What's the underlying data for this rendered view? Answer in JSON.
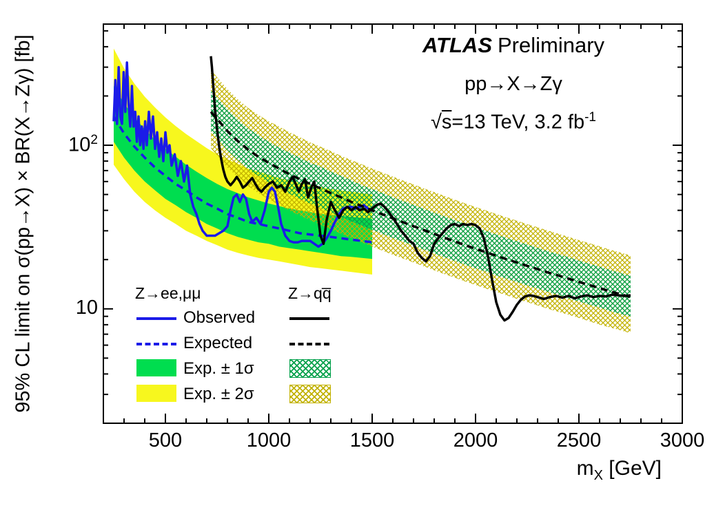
{
  "colors": {
    "blue": "#1b1be8",
    "black": "#000000",
    "green": "#00dd4f",
    "yellow": "#f7f71e",
    "hatch_green": "#00a04a",
    "hatch_yellow": "#c2b200"
  },
  "annotations": {
    "atlas": "ATLAS",
    "preliminary": "Preliminary",
    "process": "pp→X→Zγ",
    "lumi_sqrt": "√",
    "lumi_s": "s",
    "lumi_rest": "=13 TeV, 3.2 fb",
    "lumi_sup": "-1"
  },
  "axes": {
    "x_label_main": "m",
    "x_label_sub": "X",
    "x_label_rest": " [GeV]",
    "y_label": "95% CL limit on σ(pp→X) × BR(X→Zγ)  [fb]",
    "x_ticks": [
      500,
      1000,
      1500,
      2000,
      2500,
      3000
    ],
    "y_ticks": [
      {
        "base": "10",
        "exp": "2",
        "value": 100
      },
      {
        "base": "10",
        "exp": "",
        "value": 10
      }
    ]
  },
  "legend": {
    "col1_header": "Z→ee,μμ",
    "col2_header": "Z→qq̅",
    "rows": [
      {
        "label": "Observed"
      },
      {
        "label": "Expected"
      },
      {
        "label": "Exp. ± 1σ"
      },
      {
        "label": "Exp. ± 2σ"
      }
    ]
  },
  "chart_data": {
    "type": "line",
    "title": "ATLAS Preliminary 95% CL upper limits, pp→X→Zγ, √s=13 TeV, 3.2 fb⁻¹",
    "xlabel": "m_X [GeV]",
    "ylabel": "95% CL limit on σ(pp→X) × BR(X→Zγ) [fb]",
    "xlim": [
      200,
      3000
    ],
    "ylim": [
      2,
      550
    ],
    "yscale": "log",
    "xscale": "linear",
    "grid": false,
    "legend_position": "bottom-left",
    "channels": [
      {
        "key": "ll",
        "label": "Z→ee,μμ",
        "x": [
          250,
          300,
          350,
          400,
          450,
          500,
          550,
          600,
          650,
          700,
          750,
          800,
          850,
          900,
          950,
          1000,
          1050,
          1100,
          1150,
          1200,
          1250,
          1300,
          1350,
          1400,
          1450,
          1500
        ],
        "expected": [
          150,
          118,
          98,
          84,
          73,
          65,
          58,
          53,
          48,
          44,
          41,
          38,
          36,
          34,
          33,
          32,
          31,
          30,
          29,
          28.5,
          28,
          27.5,
          27,
          26.5,
          26,
          25.5
        ],
        "band1_up": [
          230,
          180,
          148,
          125,
          108,
          95,
          85,
          76,
          69,
          63,
          58,
          54,
          51,
          48,
          46,
          44,
          42.5,
          41,
          40,
          39,
          38,
          37.5,
          37,
          36.5,
          36,
          35.5
        ],
        "band1_lo": [
          105,
          84,
          70,
          60,
          53,
          47,
          43,
          39,
          36,
          33,
          31,
          29,
          27.5,
          26.5,
          25.5,
          25,
          24,
          23.5,
          23,
          22.5,
          22,
          21.5,
          21,
          20.8,
          20.5,
          20.2
        ],
        "band2_up": [
          390,
          295,
          238,
          198,
          170,
          148,
          131,
          117,
          106,
          96,
          88,
          82,
          77,
          72,
          69,
          66,
          63,
          61,
          59,
          57,
          55.5,
          54,
          53,
          52,
          51,
          50
        ],
        "band2_lo": [
          76,
          62,
          52,
          45,
          40,
          36,
          33,
          30,
          28,
          26,
          24.5,
          23,
          22,
          21.2,
          20.5,
          20,
          19.5,
          19,
          18.5,
          18,
          17.7,
          17.4,
          17.1,
          16.8,
          16.5,
          16.2
        ],
        "obs_x": [
          250,
          258,
          266,
          274,
          282,
          290,
          298,
          306,
          314,
          322,
          330,
          338,
          346,
          354,
          362,
          370,
          378,
          386,
          394,
          402,
          410,
          420,
          430,
          440,
          450,
          460,
          470,
          480,
          490,
          500,
          510,
          520,
          530,
          545,
          560,
          575,
          590,
          605,
          620,
          635,
          650,
          665,
          680,
          700,
          720,
          740,
          760,
          780,
          800,
          815,
          830,
          845,
          860,
          875,
          890,
          905,
          920,
          940,
          960,
          980,
          1000,
          1015,
          1030,
          1045,
          1060,
          1080,
          1100,
          1120,
          1140,
          1160,
          1180,
          1200,
          1220,
          1240,
          1260,
          1280,
          1300,
          1320,
          1340,
          1360,
          1380,
          1400,
          1420,
          1440,
          1460,
          1480,
          1500
        ],
        "obs_y": [
          140,
          250,
          135,
          300,
          150,
          135,
          280,
          160,
          320,
          180,
          130,
          230,
          130,
          160,
          105,
          150,
          100,
          130,
          95,
          140,
          100,
          160,
          110,
          150,
          95,
          120,
          85,
          110,
          80,
          120,
          90,
          100,
          75,
          88,
          65,
          80,
          60,
          75,
          50,
          42,
          38,
          33,
          30,
          28,
          28,
          28,
          29,
          30,
          32,
          40,
          48,
          50,
          45,
          50,
          47,
          38,
          34,
          36,
          33,
          40,
          52,
          55,
          52,
          42,
          33,
          28,
          26,
          25.5,
          25.5,
          26,
          26,
          26,
          25,
          24,
          25,
          27,
          30,
          34,
          38,
          41,
          42,
          42,
          41,
          42,
          43,
          41,
          40
        ]
      },
      {
        "key": "qq",
        "label": "Z→qq̄",
        "x": [
          720,
          760,
          800,
          850,
          900,
          950,
          1000,
          1050,
          1100,
          1150,
          1200,
          1250,
          1300,
          1350,
          1400,
          1450,
          1500,
          1550,
          1600,
          1650,
          1700,
          1750,
          1800,
          1850,
          1900,
          1950,
          2000,
          2050,
          2100,
          2150,
          2200,
          2250,
          2300,
          2350,
          2400,
          2450,
          2500,
          2550,
          2600,
          2650,
          2700,
          2750
        ],
        "expected": [
          160,
          140,
          122,
          106,
          94,
          85,
          78,
          72,
          66.5,
          62,
          58,
          54.5,
          51,
          48,
          45,
          42.5,
          40,
          37.8,
          35.7,
          33.8,
          32,
          30.3,
          28.7,
          27.2,
          25.8,
          24.5,
          23.3,
          22.2,
          21.1,
          20.1,
          19.2,
          18.3,
          17.5,
          16.7,
          16,
          15.3,
          14.6,
          14,
          13.4,
          12.8,
          12.3,
          11.8
        ],
        "band1_up": [
          216,
          189,
          165,
          143,
          127,
          115,
          105,
          97,
          90,
          84,
          78,
          74,
          69,
          65,
          61,
          57,
          54,
          51,
          48,
          45.6,
          43.2,
          40.9,
          38.7,
          36.7,
          34.8,
          33.1,
          31.5,
          30,
          28.5,
          27.1,
          25.9,
          24.7,
          23.6,
          22.5,
          21.6,
          20.7,
          19.7,
          18.9,
          18.1,
          17.3,
          16.6,
          15.9
        ],
        "band1_lo": [
          122,
          106,
          93,
          81,
          71,
          65,
          59,
          55,
          50.5,
          47,
          44,
          41.4,
          38.8,
          36.5,
          34.2,
          32.3,
          30.4,
          28.7,
          27.1,
          25.7,
          24.3,
          23,
          21.8,
          20.7,
          19.6,
          18.6,
          17.7,
          16.9,
          16,
          15.3,
          14.6,
          13.9,
          13.3,
          12.7,
          12.2,
          11.6,
          11.1,
          10.6,
          10.2,
          9.7,
          9.3,
          9.0
        ],
        "band2_up": [
          288,
          252,
          220,
          191,
          169,
          153,
          140,
          130,
          120,
          112,
          104,
          98,
          92,
          86,
          81,
          76.5,
          72,
          68,
          64.3,
          60.8,
          57.6,
          54.5,
          51.7,
          49,
          46.4,
          44.1,
          41.9,
          40,
          38,
          36.2,
          34.6,
          32.9,
          31.5,
          30.1,
          28.8,
          27.5,
          26.3,
          25.2,
          24.1,
          23,
          22.1,
          21.2
        ],
        "band2_lo": [
          96,
          84,
          73,
          64,
          56.4,
          51,
          46.8,
          43.2,
          39.9,
          37.2,
          34.8,
          32.7,
          30.6,
          28.8,
          27,
          25.5,
          24,
          22.7,
          21.4,
          20.3,
          19.2,
          18.2,
          17.2,
          16.3,
          15.5,
          14.7,
          14,
          13.3,
          12.7,
          12.1,
          11.5,
          11,
          10.5,
          10,
          9.6,
          9.2,
          8.8,
          8.4,
          8,
          7.7,
          7.4,
          7.1
        ],
        "obs_x": [
          720,
          725,
          730,
          735,
          740,
          750,
          760,
          770,
          780,
          790,
          800,
          815,
          830,
          845,
          860,
          875,
          890,
          905,
          920,
          935,
          950,
          965,
          980,
          1000,
          1020,
          1040,
          1060,
          1080,
          1100,
          1115,
          1130,
          1145,
          1160,
          1175,
          1190,
          1205,
          1220,
          1235,
          1250,
          1265,
          1280,
          1300,
          1320,
          1340,
          1360,
          1380,
          1400,
          1420,
          1440,
          1460,
          1480,
          1500,
          1520,
          1540,
          1560,
          1580,
          1600,
          1620,
          1640,
          1660,
          1680,
          1700,
          1720,
          1740,
          1760,
          1780,
          1800,
          1820,
          1840,
          1860,
          1880,
          1900,
          1920,
          1940,
          1960,
          1980,
          2000,
          2020,
          2040,
          2060,
          2080,
          2100,
          2120,
          2140,
          2160,
          2180,
          2200,
          2220,
          2240,
          2260,
          2280,
          2300,
          2330,
          2360,
          2390,
          2420,
          2450,
          2480,
          2510,
          2540,
          2570,
          2600,
          2630,
          2660,
          2690,
          2720,
          2750
        ],
        "obs_y": [
          350,
          300,
          245,
          200,
          165,
          125,
          98,
          82,
          71,
          64,
          60,
          57,
          60,
          64,
          60,
          55,
          57,
          60,
          63,
          58,
          54,
          52,
          55,
          58,
          60,
          55,
          57,
          52,
          60,
          64,
          58,
          52,
          58,
          62,
          48,
          55,
          60,
          40,
          28,
          25,
          35,
          45,
          40,
          36,
          40,
          42,
          40,
          42,
          40,
          41,
          39,
          41,
          43,
          44,
          42,
          39,
          36,
          33,
          30,
          28,
          26,
          25,
          22,
          20.5,
          19.5,
          21,
          25,
          27,
          29,
          31,
          32.5,
          33,
          32,
          33,
          32.5,
          33,
          32.5,
          31,
          27,
          21,
          15,
          11,
          9.2,
          8.5,
          8.8,
          9.6,
          10.6,
          11.4,
          11.9,
          12.1,
          12,
          11.8,
          11.5,
          11.8,
          12,
          11.7,
          12,
          11.6,
          11.9,
          12.1,
          11.8,
          12,
          11.9,
          12.2,
          12.1,
          12,
          12.1
        ]
      }
    ]
  }
}
